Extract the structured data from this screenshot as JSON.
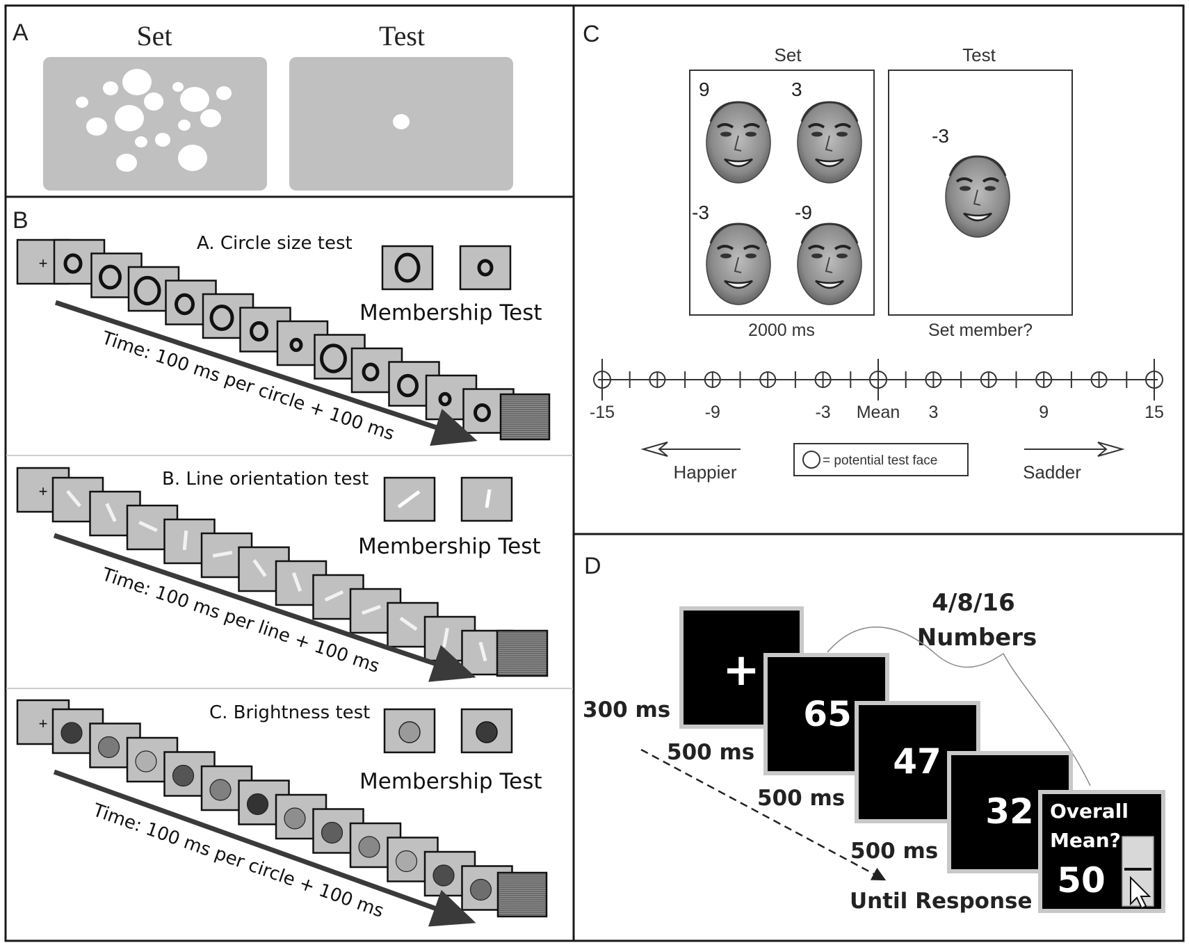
{
  "panels": {
    "a": {
      "label": "A",
      "set_title": "Set",
      "test_title": "Test"
    },
    "b": {
      "label": "B",
      "rows": [
        {
          "title": "A. Circle size test",
          "membership": "Membership Test",
          "time": "Time: 100 ms per circle + 100 ms"
        },
        {
          "title": "B. Line orientation test",
          "membership": "Membership Test",
          "time": "Time: 100 ms per line + 100 ms"
        },
        {
          "title": "C. Brightness test",
          "membership": "Membership Test",
          "time": "Time: 100 ms per circle + 100 ms"
        }
      ],
      "fixation": "+"
    },
    "c": {
      "label": "C",
      "set_title": "Set",
      "test_title": "Test",
      "set_face_labels": [
        "9",
        "3",
        "-3",
        "-9"
      ],
      "test_face_label": "-3",
      "set_caption": "2000 ms",
      "test_caption": "Set member?",
      "scale_labels": [
        "-15",
        "-9",
        "-3",
        "Mean",
        "3",
        "9",
        "15"
      ],
      "legend": "= potential test face",
      "left_arrow": "Happier",
      "right_arrow": "Sadder"
    },
    "d": {
      "label": "D",
      "heading_count": "4/8/16",
      "heading_word": "Numbers",
      "fixation": "+",
      "fixation_time": "300 ms",
      "numbers": [
        "65",
        "47",
        "32"
      ],
      "durations": [
        "500 ms",
        "500 ms",
        "500 ms"
      ],
      "response_prompt_1": "Overall",
      "response_prompt_2": "Mean?",
      "response_value": "50",
      "until": "Until Response"
    }
  },
  "colors": {
    "panel_border": "#1a1a1a",
    "screen_gray": "#c0c0c0",
    "black_screen": "#000000"
  }
}
